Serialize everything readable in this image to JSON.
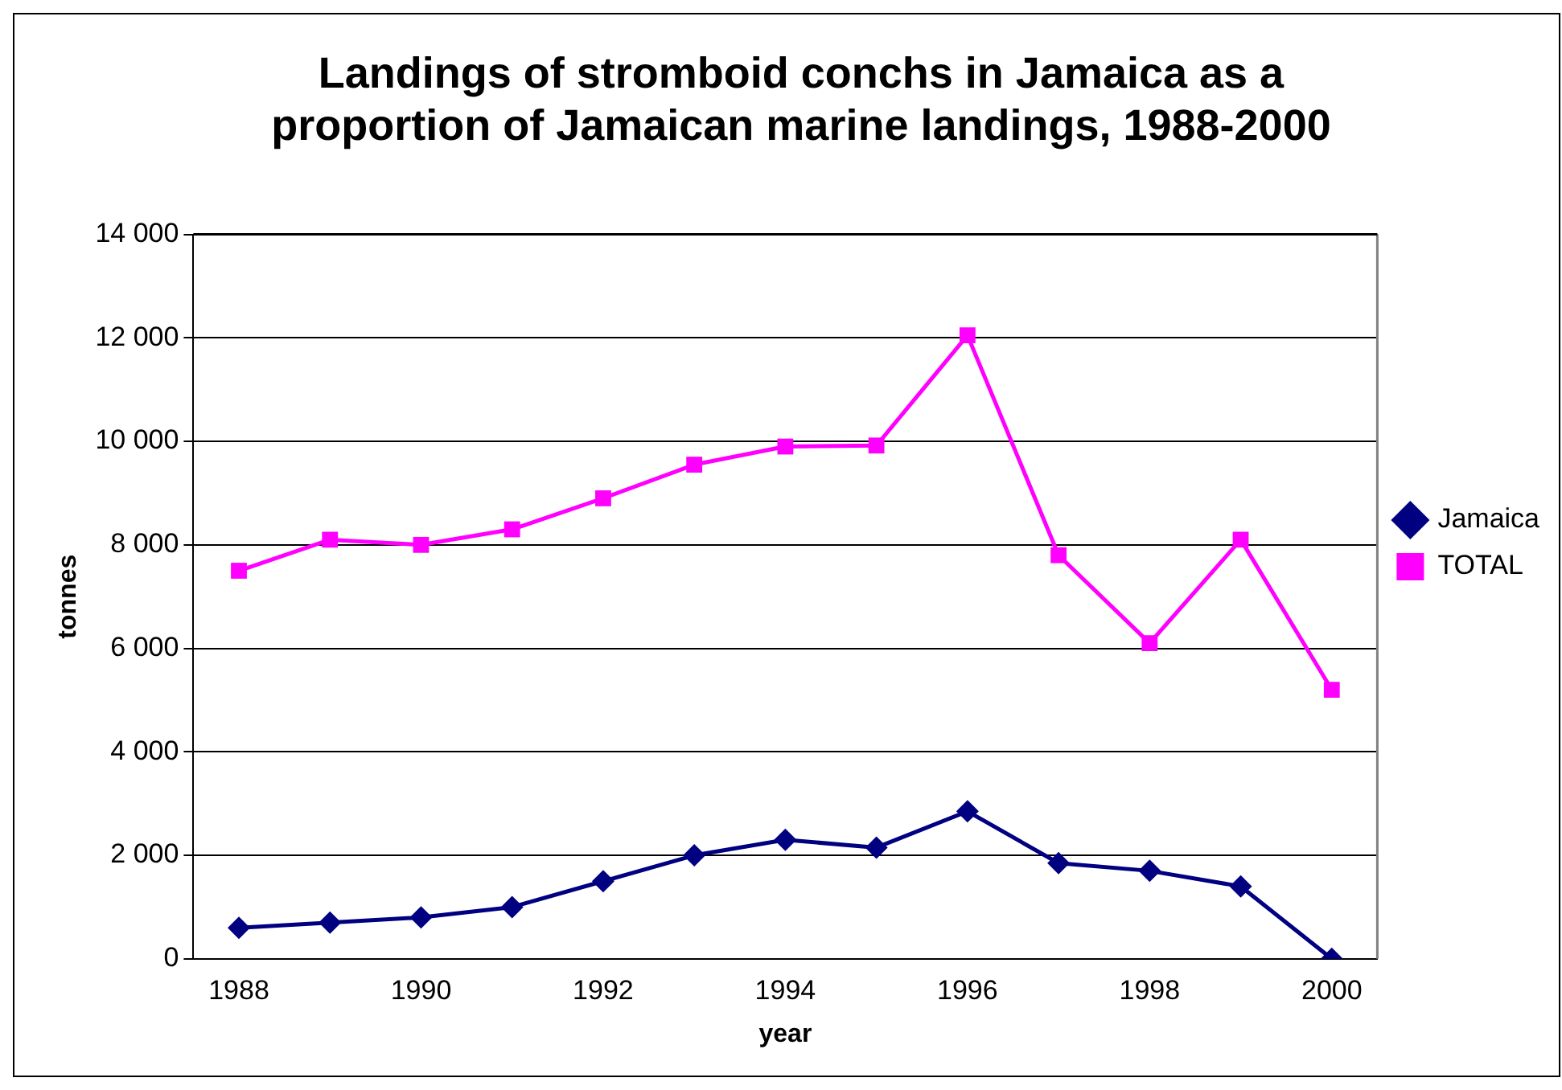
{
  "chart_data": {
    "type": "line",
    "title": [
      "Landings of stromboid conchs in Jamaica as a",
      "proportion of Jamaican marine landings, 1988-2000"
    ],
    "xlabel": "year",
    "ylabel": "tonnes",
    "categories": [
      "1988",
      null,
      "1990",
      null,
      "1992",
      null,
      "1994",
      null,
      "1996",
      null,
      "1998",
      null,
      "2000"
    ],
    "series": [
      {
        "name": "Jamaica",
        "color": "#000080",
        "marker": "diamond",
        "values": [
          600,
          700,
          800,
          1000,
          1500,
          2000,
          2300,
          2150,
          2850,
          1850,
          1700,
          1400,
          0
        ]
      },
      {
        "name": "TOTAL",
        "color": "#ff00ff",
        "marker": "square",
        "values": [
          7500,
          8100,
          8000,
          8300,
          8900,
          9550,
          9900,
          9920,
          12050,
          7800,
          6100,
          8100,
          5200
        ]
      }
    ],
    "ylim": [
      0,
      14000
    ],
    "yticks": [
      {
        "value": 0,
        "label": "0"
      },
      {
        "value": 2000,
        "label": "2 000"
      },
      {
        "value": 4000,
        "label": "4 000"
      },
      {
        "value": 6000,
        "label": "6 000"
      },
      {
        "value": 8000,
        "label": "8 000"
      },
      {
        "value": 10000,
        "label": "10 000"
      },
      {
        "value": 12000,
        "label": "12 000"
      },
      {
        "value": 14000,
        "label": "14 000"
      }
    ],
    "grid": "y",
    "legend": "right",
    "line_style": "solid"
  }
}
